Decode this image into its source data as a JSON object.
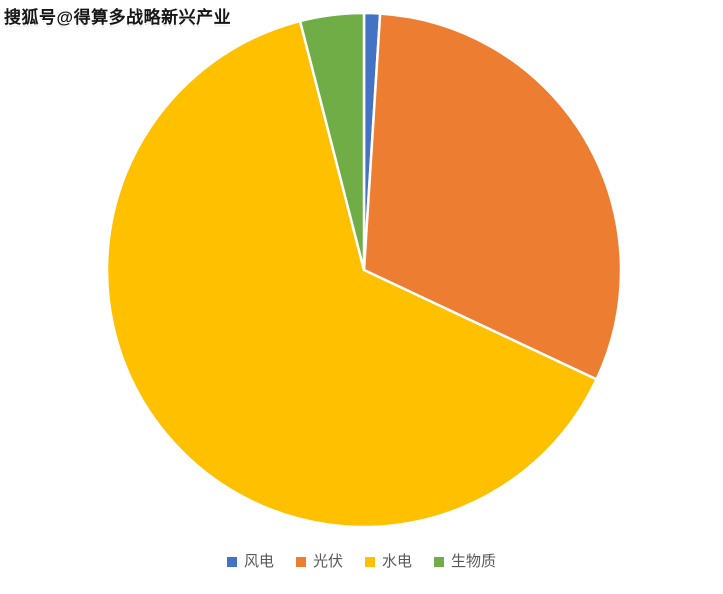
{
  "watermark": "搜狐号@得算多战略新兴产业",
  "colors": {
    "background": "#ffffff",
    "legend_text": "#595959",
    "slice_border": "#ffffff",
    "watermark_text": "#161616"
  },
  "chart_data": {
    "type": "pie",
    "title": "",
    "categories": [
      "风电",
      "光伏",
      "水电",
      "生物质"
    ],
    "values": [
      1,
      31,
      64,
      4
    ],
    "unit": "percent (estimated from slice angles)",
    "colors": [
      "#4472C4",
      "#ED7D31",
      "#FFC000",
      "#70AD47"
    ],
    "series_keys": [
      "wind",
      "solar",
      "hydro",
      "biomass"
    ],
    "start_angle_deg": 0,
    "direction": "clockwise",
    "legend_position": "bottom",
    "data_labels": "none",
    "slice_border_color": "#ffffff"
  }
}
